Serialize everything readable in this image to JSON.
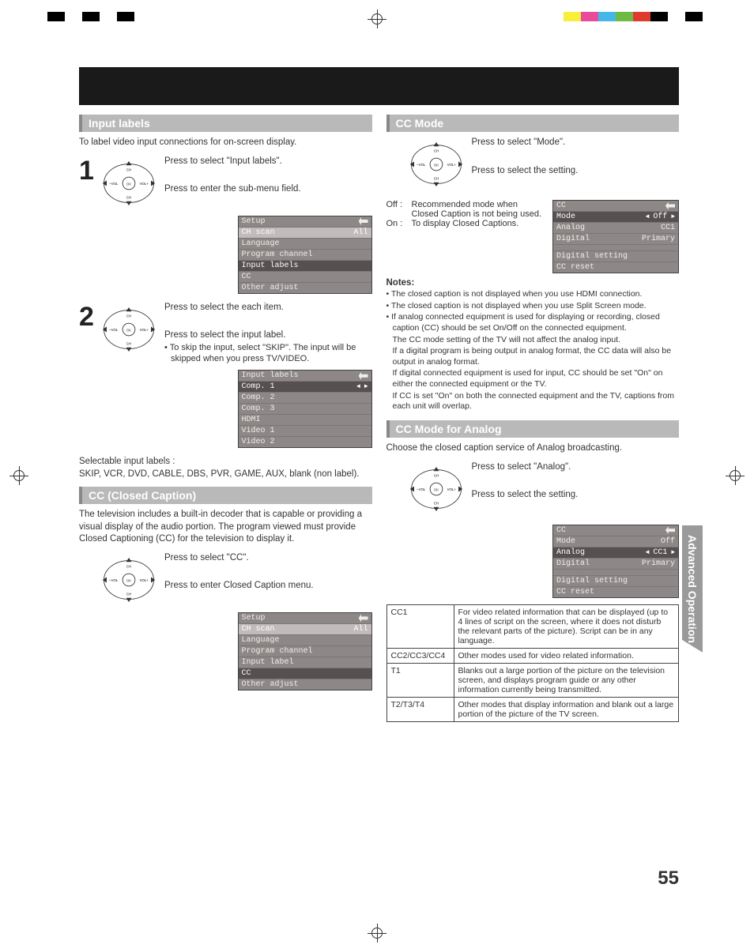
{
  "colorbar_left": [
    "#000000",
    "#ffffff",
    "#000000",
    "#ffffff",
    "#000000"
  ],
  "colorbar_right": [
    "#f7ef3a",
    "#e94b9b",
    "#44b6e8",
    "#6dbb45",
    "#e03a2f",
    "#000000",
    "#ffffff",
    "#000000"
  ],
  "side_tab": "Advanced Operation",
  "page_number": "55",
  "col1": {
    "s1_title": "Input labels",
    "s1_intro": "To label video input connections for on-screen display.",
    "step1_num": "1",
    "step1a": "Press to select \"Input labels\".",
    "step1b": "Press to enter the sub-menu field.",
    "osd1": {
      "title": "Setup",
      "rows": [
        {
          "l": "CH scan",
          "r": "All",
          "hl": true
        },
        {
          "l": "Language"
        },
        {
          "l": "Program channel"
        },
        {
          "l": "Input labels",
          "sel": true
        },
        {
          "l": "CC"
        },
        {
          "l": "Other adjust"
        }
      ]
    },
    "step2_num": "2",
    "step2a": "Press to select the each item.",
    "step2b": "Press to select the input label.",
    "step2c": "• To skip the input, select \"SKIP\". The input will be skipped when you press TV/VIDEO.",
    "osd2": {
      "title": "Input labels",
      "rows": [
        {
          "l": "Comp. 1",
          "arrows": true,
          "sel": true
        },
        {
          "l": "Comp. 2"
        },
        {
          "l": "Comp. 3"
        },
        {
          "l": "HDMI"
        },
        {
          "l": "Video 1"
        },
        {
          "l": "Video 2"
        }
      ]
    },
    "sel_labels_t": "Selectable input labels :",
    "sel_labels": "SKIP, VCR, DVD, CABLE, DBS, PVR, GAME, AUX, blank (non label).",
    "s2_title": "CC (Closed Caption)",
    "s2_intro": "The television includes a built-in decoder that is capable or providing a visual display of the audio portion. The program viewed must provide Closed Captioning (CC) for the television to display it.",
    "cc_a": "Press to select \"CC\".",
    "cc_b": "Press to enter Closed Caption menu.",
    "osd3": {
      "title": "Setup",
      "rows": [
        {
          "l": "CH scan",
          "r": "All",
          "hl": true
        },
        {
          "l": "Language"
        },
        {
          "l": "Program channel"
        },
        {
          "l": "Input label"
        },
        {
          "l": "CC",
          "sel": true
        },
        {
          "l": "Other adjust"
        }
      ]
    }
  },
  "col2": {
    "s3_title": "CC Mode",
    "mode_a": "Press to select \"Mode\".",
    "mode_b": "Press to select the setting.",
    "defs": [
      {
        "k": "Off :",
        "v": "Recommended mode when Closed Caption is not being used."
      },
      {
        "k": "On :",
        "v": "To display Closed Captions."
      }
    ],
    "osd4": {
      "title": "CC",
      "rows": [
        {
          "l": "Mode",
          "r": "Off",
          "arrows": true,
          "sel": true
        },
        {
          "l": "Analog",
          "r": "CC1"
        },
        {
          "l": "Digital",
          "r": "Primary"
        }
      ],
      "foot": [
        "Digital setting",
        "CC reset"
      ]
    },
    "notes_title": "Notes:",
    "notes": [
      "The closed caption is not displayed when you use HDMI connection.",
      "The closed caption is not displayed when you use Split Screen mode.",
      "If analog connected equipment is used for displaying or recording, closed caption (CC) should be set On/Off on the connected equipment."
    ],
    "notes_cont": [
      "The CC mode setting of the TV will not affect the analog input.",
      "If a digital program is being output in analog format, the CC data will also be output in analog format.",
      "If digital connected equipment is used for input, CC should be set \"On\" on either the connected equipment or the TV.",
      "If CC is set \"On\" on both the connected equipment and the TV, captions from each unit will overlap."
    ],
    "s4_title": "CC Mode for Analog",
    "s4_intro": "Choose the closed caption service of Analog broadcasting.",
    "analog_a": "Press to select \"Analog\".",
    "analog_b": "Press to select the setting.",
    "osd5": {
      "title": "CC",
      "rows": [
        {
          "l": "Mode",
          "r": "Off"
        },
        {
          "l": "Analog",
          "r": "CC1",
          "arrows": true,
          "sel": true
        },
        {
          "l": "Digital",
          "r": "Primary"
        }
      ],
      "foot": [
        "Digital setting",
        "CC reset"
      ]
    },
    "table": [
      {
        "k": "CC1",
        "v": "For video related information that can be displayed (up to 4 lines of script on the screen, where it does not disturb the relevant parts of the picture). Script can be in any language."
      },
      {
        "k": "CC2/CC3/CC4",
        "v": "Other modes used for video related information."
      },
      {
        "k": "T1",
        "v": "Blanks out a large portion of the picture on the television screen, and displays program guide or any other information currently being transmitted."
      },
      {
        "k": "T2/T3/T4",
        "v": "Other modes that display information and blank out a large portion of the picture of the TV screen."
      }
    ]
  },
  "remote_labels": {
    "up": "CH",
    "down": "CH",
    "left": "VOL",
    "right": "VOL",
    "ok": "OK",
    "plus": "+",
    "minus": "–"
  }
}
